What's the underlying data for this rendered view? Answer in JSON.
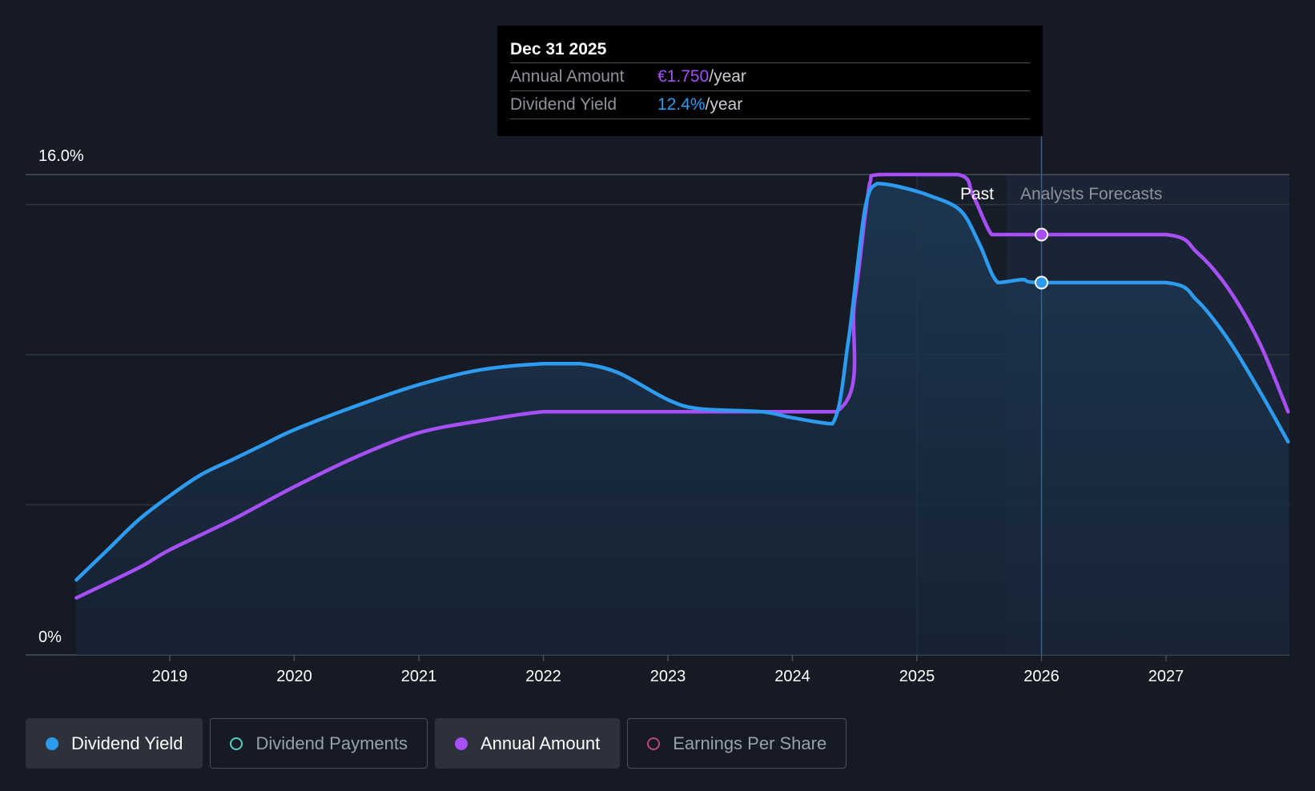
{
  "colors": {
    "background": "#151a24",
    "dividend_yield": "#2d9cf0",
    "annual_amount": "#a64ff5",
    "dividend_payments": "#4fd1c5",
    "earnings_per_share": "#c0477a",
    "gridline": "#2f3540"
  },
  "tooltip": {
    "date": "Dec 31 2025",
    "rows": [
      {
        "label": "Annual Amount",
        "value": "€1.750",
        "unit": "/year"
      },
      {
        "label": "Dividend Yield",
        "value": "12.4%",
        "unit": "/year"
      }
    ]
  },
  "legend": [
    {
      "label": "Dividend Yield",
      "active": true,
      "marker": "filled-dot",
      "color": "#2d9cf0"
    },
    {
      "label": "Dividend Payments",
      "active": false,
      "marker": "hollow-circle",
      "color": "#4fd1c5"
    },
    {
      "label": "Annual Amount",
      "active": true,
      "marker": "filled-dot",
      "color": "#a64ff5"
    },
    {
      "label": "Earnings Per Share",
      "active": false,
      "marker": "hollow-circle",
      "color": "#c0477a"
    }
  ],
  "chart_data": {
    "type": "line",
    "x_tick_labels": [
      "2019",
      "2020",
      "2021",
      "2022",
      "2023",
      "2024",
      "2025",
      "2026",
      "2027"
    ],
    "y_tick_labels": {
      "top": "16.0%",
      "bottom": "0%"
    },
    "ylim": [
      0,
      16
    ],
    "xlim": [
      2018.25,
      2027.98
    ],
    "grid": true,
    "regions": {
      "past_label": "Past",
      "forecast_label": "Analysts Forecasts",
      "forecast_start": 2025.72
    },
    "cursor_x": 2026.0,
    "series": [
      {
        "name": "Dividend Yield",
        "unit": "%",
        "area_fill": true,
        "points": [
          [
            2018.25,
            2.5
          ],
          [
            2018.5,
            3.5
          ],
          [
            2018.75,
            4.5
          ],
          [
            2019.0,
            5.3
          ],
          [
            2019.25,
            6.0
          ],
          [
            2019.5,
            6.5
          ],
          [
            2019.75,
            7.0
          ],
          [
            2020.0,
            7.5
          ],
          [
            2020.5,
            8.3
          ],
          [
            2021.0,
            9.0
          ],
          [
            2021.5,
            9.5
          ],
          [
            2022.0,
            9.7
          ],
          [
            2022.3,
            9.7
          ],
          [
            2022.6,
            9.4
          ],
          [
            2023.0,
            8.5
          ],
          [
            2023.25,
            8.2
          ],
          [
            2023.75,
            8.1
          ],
          [
            2024.0,
            7.9
          ],
          [
            2024.32,
            7.7
          ],
          [
            2024.45,
            10.5
          ],
          [
            2024.58,
            14.8
          ],
          [
            2024.68,
            15.7
          ],
          [
            2024.85,
            15.6
          ],
          [
            2025.1,
            15.3
          ],
          [
            2025.35,
            14.8
          ],
          [
            2025.5,
            13.7
          ],
          [
            2025.65,
            12.4
          ],
          [
            2025.85,
            12.5
          ],
          [
            2026.0,
            12.4
          ],
          [
            2027.0,
            12.4
          ],
          [
            2027.25,
            11.8
          ],
          [
            2027.5,
            10.5
          ],
          [
            2027.75,
            8.8
          ],
          [
            2027.98,
            7.1
          ]
        ]
      },
      {
        "name": "Annual Amount",
        "unit": "€",
        "area_fill": false,
        "points": [
          [
            2018.25,
            1.9
          ],
          [
            2018.75,
            2.9
          ],
          [
            2019.0,
            3.5
          ],
          [
            2019.5,
            4.5
          ],
          [
            2020.0,
            5.6
          ],
          [
            2020.5,
            6.6
          ],
          [
            2021.0,
            7.4
          ],
          [
            2021.5,
            7.8
          ],
          [
            2022.0,
            8.1
          ],
          [
            2022.3,
            8.1
          ],
          [
            2023.0,
            8.1
          ],
          [
            2024.35,
            8.1
          ],
          [
            2024.5,
            11.8
          ],
          [
            2024.62,
            15.7
          ],
          [
            2024.7,
            16.0
          ],
          [
            2025.33,
            16.0
          ],
          [
            2025.45,
            15.3
          ],
          [
            2025.6,
            14.0
          ],
          [
            2025.72,
            14.0
          ],
          [
            2026.0,
            14.0
          ],
          [
            2027.0,
            14.0
          ],
          [
            2027.25,
            13.4
          ],
          [
            2027.5,
            12.2
          ],
          [
            2027.75,
            10.4
          ],
          [
            2027.98,
            8.1
          ]
        ]
      }
    ]
  }
}
